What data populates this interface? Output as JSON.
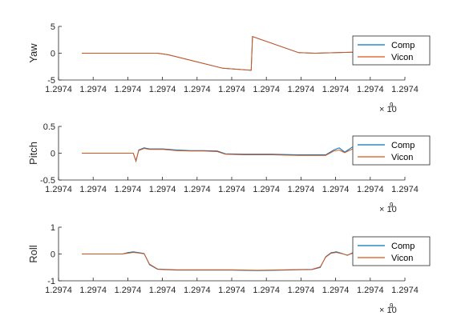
{
  "chart_data": [
    {
      "type": "line",
      "ylabel": "Yaw",
      "ylim": [
        -5,
        5
      ],
      "yticks": [
        "5",
        "0",
        "-5"
      ],
      "xticks": [
        "1.2974",
        "1.2974",
        "1.2974",
        "1.2974",
        "1.2974",
        "1.2974",
        "1.2974",
        "1.2974",
        "1.2974",
        "1.2974",
        "1.2974"
      ],
      "exponent_base": "× 10",
      "exponent_power": "9",
      "legend": {
        "position": "right",
        "entries": [
          "Comp",
          "Vicon"
        ]
      },
      "series": [
        {
          "name": "Comp",
          "color": "#0072BD",
          "x": [
            0,
            0.22,
            0.28,
            0.32,
            0.52,
            0.625,
            0.63,
            0.8,
            0.86,
            1.0
          ],
          "y": [
            0,
            0,
            0,
            -0.3,
            -2.8,
            -3.2,
            3.1,
            0.1,
            0,
            0.2
          ]
        },
        {
          "name": "Vicon",
          "color": "#D95319",
          "x": [
            0,
            0.22,
            0.28,
            0.32,
            0.52,
            0.625,
            0.63,
            0.8,
            0.86,
            1.0
          ],
          "y": [
            0,
            0,
            0,
            -0.3,
            -2.8,
            -3.2,
            3.1,
            0.1,
            0,
            0.2
          ]
        }
      ]
    },
    {
      "type": "line",
      "ylabel": "Pitch",
      "ylim": [
        -0.5,
        0.5
      ],
      "yticks": [
        "0.5",
        "0",
        "-0.5"
      ],
      "xticks": [
        "1.2974",
        "1.2974",
        "1.2974",
        "1.2974",
        "1.2974",
        "1.2974",
        "1.2974",
        "1.2974",
        "1.2974",
        "1.2974",
        "1.2974"
      ],
      "exponent_base": "× 10",
      "exponent_power": "9",
      "legend": {
        "position": "right",
        "entries": [
          "Comp",
          "Vicon"
        ]
      },
      "series": [
        {
          "name": "Comp",
          "color": "#0072BD",
          "x": [
            0,
            0.17,
            0.19,
            0.2,
            0.21,
            0.23,
            0.25,
            0.3,
            0.35,
            0.4,
            0.45,
            0.5,
            0.53,
            0.6,
            0.7,
            0.8,
            0.9,
            0.93,
            0.95,
            0.97,
            1.0
          ],
          "y": [
            0,
            0,
            0,
            -0.15,
            0.06,
            0.1,
            0.08,
            0.08,
            0.06,
            0.05,
            0.05,
            0.04,
            -0.01,
            -0.02,
            -0.02,
            -0.03,
            -0.03,
            0.06,
            0.1,
            0.02,
            0.12
          ]
        },
        {
          "name": "Vicon",
          "color": "#D95319",
          "x": [
            0,
            0.17,
            0.19,
            0.2,
            0.21,
            0.23,
            0.25,
            0.3,
            0.35,
            0.4,
            0.45,
            0.5,
            0.53,
            0.6,
            0.7,
            0.8,
            0.9,
            0.93,
            0.95,
            0.97,
            1.0
          ],
          "y": [
            0,
            0,
            0,
            -0.14,
            0.05,
            0.09,
            0.07,
            0.07,
            0.05,
            0.04,
            0.04,
            0.03,
            -0.02,
            -0.03,
            -0.03,
            -0.04,
            -0.04,
            0.04,
            0.06,
            0.01,
            0.08
          ]
        }
      ]
    },
    {
      "type": "line",
      "ylabel": "Roll",
      "ylim": [
        -1,
        1
      ],
      "yticks": [
        "1",
        "0",
        "-1"
      ],
      "xticks": [
        "1.2974",
        "1.2974",
        "1.2974",
        "1.2974",
        "1.2974",
        "1.2974",
        "1.2974",
        "1.2974",
        "1.2974",
        "1.2974",
        "1.2974"
      ],
      "exponent_base": "× 10",
      "exponent_power": "9",
      "legend": {
        "position": "right",
        "entries": [
          "Comp",
          "Vicon"
        ]
      },
      "series": [
        {
          "name": "Comp",
          "color": "#0072BD",
          "x": [
            0,
            0.15,
            0.17,
            0.19,
            0.21,
            0.23,
            0.25,
            0.28,
            0.35,
            0.45,
            0.55,
            0.65,
            0.75,
            0.85,
            0.88,
            0.9,
            0.92,
            0.94,
            0.96,
            0.98,
            1.0
          ],
          "y": [
            0,
            0,
            0.05,
            0.08,
            0.05,
            0.02,
            -0.4,
            -0.57,
            -0.6,
            -0.6,
            -0.6,
            -0.62,
            -0.6,
            -0.58,
            -0.5,
            -0.1,
            0.05,
            0.08,
            0.02,
            -0.05,
            0.05
          ]
        },
        {
          "name": "Vicon",
          "color": "#D95319",
          "x": [
            0,
            0.15,
            0.17,
            0.19,
            0.21,
            0.23,
            0.25,
            0.28,
            0.35,
            0.45,
            0.55,
            0.65,
            0.75,
            0.85,
            0.88,
            0.9,
            0.92,
            0.94,
            0.96,
            0.98,
            1.0
          ],
          "y": [
            0,
            0,
            0.03,
            0.06,
            0.04,
            0.01,
            -0.38,
            -0.56,
            -0.59,
            -0.59,
            -0.59,
            -0.61,
            -0.59,
            -0.57,
            -0.48,
            -0.12,
            0.03,
            0.06,
            0.01,
            -0.04,
            0.03
          ]
        }
      ]
    }
  ]
}
